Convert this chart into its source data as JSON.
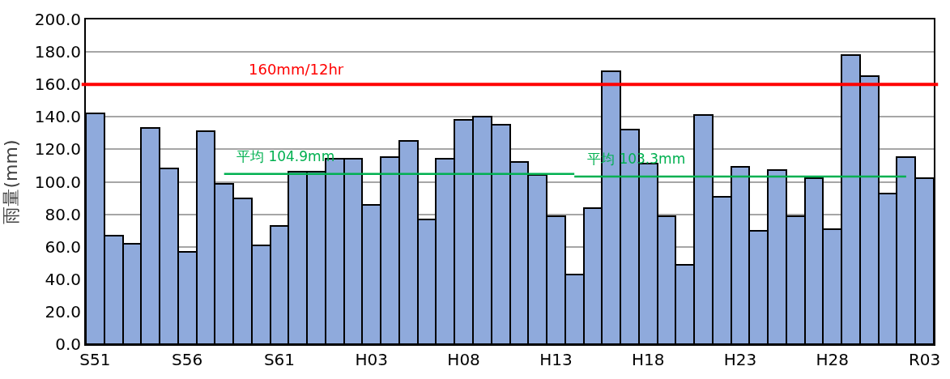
{
  "chart_data": {
    "type": "bar",
    "ylabel": "雨量(mm)",
    "categories": [
      "S51",
      null,
      null,
      null,
      null,
      "S56",
      null,
      null,
      null,
      null,
      "S61",
      null,
      null,
      null,
      null,
      "H03",
      null,
      null,
      null,
      null,
      "H08",
      null,
      null,
      null,
      null,
      "H13",
      null,
      null,
      null,
      null,
      "H18",
      null,
      null,
      null,
      null,
      "H23",
      null,
      null,
      null,
      null,
      "H28",
      null,
      null,
      null,
      null,
      "R03"
    ],
    "series": [
      {
        "color": "#8faadc",
        "values": [
          142,
          67,
          62,
          133,
          108,
          57,
          131,
          99,
          90,
          61,
          73,
          106,
          106,
          114,
          114,
          86,
          115,
          125,
          77,
          114,
          138,
          140,
          135,
          112,
          104,
          79,
          43,
          84,
          168,
          132,
          111,
          79,
          49,
          141,
          91,
          109,
          70,
          107,
          79,
          102,
          71,
          178,
          165,
          93,
          115,
          102
        ]
      },
      {
        "type": "line",
        "name": "平均 104.9mm",
        "color": "#00b050",
        "values": [
          null,
          null,
          null,
          null,
          null,
          null,
          null,
          104.9,
          104.9,
          104.9,
          104.9,
          104.9,
          104.9,
          104.9,
          104.9,
          104.9,
          104.9,
          104.9,
          104.9,
          104.9,
          104.9,
          104.9,
          104.9,
          104.9,
          104.9,
          104.9,
          104.9,
          null,
          null,
          null,
          null,
          null,
          null,
          null,
          null,
          null,
          null,
          null,
          null,
          null,
          null,
          null,
          null,
          null,
          null,
          null
        ]
      },
      {
        "type": "line",
        "name": "平均 103.3mm",
        "color": "#00b050",
        "values": [
          null,
          null,
          null,
          null,
          null,
          null,
          null,
          null,
          null,
          null,
          null,
          null,
          null,
          null,
          null,
          null,
          null,
          null,
          null,
          null,
          null,
          null,
          null,
          null,
          null,
          null,
          103.3,
          103.3,
          103.3,
          103.3,
          103.3,
          103.3,
          103.3,
          103.3,
          103.3,
          103.3,
          103.3,
          103.3,
          103.3,
          103.3,
          103.3,
          103.3,
          103.3,
          103.3,
          103.3,
          null
        ]
      }
    ],
    "ref_lines": [
      {
        "axis": "y",
        "value": 160,
        "label": "160mm/12hr",
        "color": "#ff0000"
      }
    ],
    "ylim": [
      0,
      200
    ],
    "yticks": [
      {
        "value": 0,
        "label": "0.0"
      },
      {
        "value": 20,
        "label": "20.0"
      },
      {
        "value": 40,
        "label": "40.0"
      },
      {
        "value": 60,
        "label": "60.0"
      },
      {
        "value": 80,
        "label": "80.0"
      },
      {
        "value": 100,
        "label": "100.0"
      },
      {
        "value": 120,
        "label": "120.0"
      },
      {
        "value": 140,
        "label": "140.0"
      },
      {
        "value": 160,
        "label": "160.0"
      },
      {
        "value": 180,
        "label": "180.0"
      },
      {
        "value": 200,
        "label": "200.0"
      }
    ],
    "grid": "y"
  }
}
